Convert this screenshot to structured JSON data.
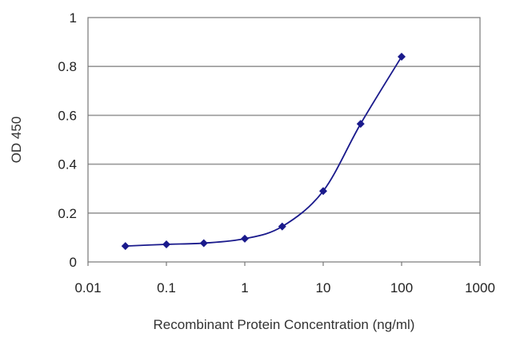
{
  "chart_data": {
    "type": "scatter",
    "title": "",
    "xlabel": "Recombinant Protein Concentration (ng/ml)",
    "ylabel": "OD 450",
    "x_scale": "log",
    "xlim": [
      0.01,
      1000
    ],
    "ylim": [
      0,
      1
    ],
    "x_ticks": [
      0.01,
      0.1,
      1,
      10,
      100,
      1000
    ],
    "x_tick_labels": [
      "0.01",
      "0.1",
      "1",
      "10",
      "100",
      "1000"
    ],
    "y_ticks": [
      0,
      0.2,
      0.4,
      0.6,
      0.8,
      1
    ],
    "y_tick_labels": [
      "0",
      "0.2",
      "0.4",
      "0.6",
      "0.8",
      "1"
    ],
    "grid": "horizontal",
    "legend": "none",
    "colors": {
      "series": "#1a1a8c",
      "grid": "#999999",
      "axis": "#777777"
    },
    "series": [
      {
        "x": [
          0.03,
          0.1,
          0.3,
          1,
          3,
          10,
          30,
          100
        ],
        "y": [
          0.065,
          0.072,
          0.077,
          0.095,
          0.145,
          0.29,
          0.565,
          0.84
        ]
      }
    ]
  }
}
